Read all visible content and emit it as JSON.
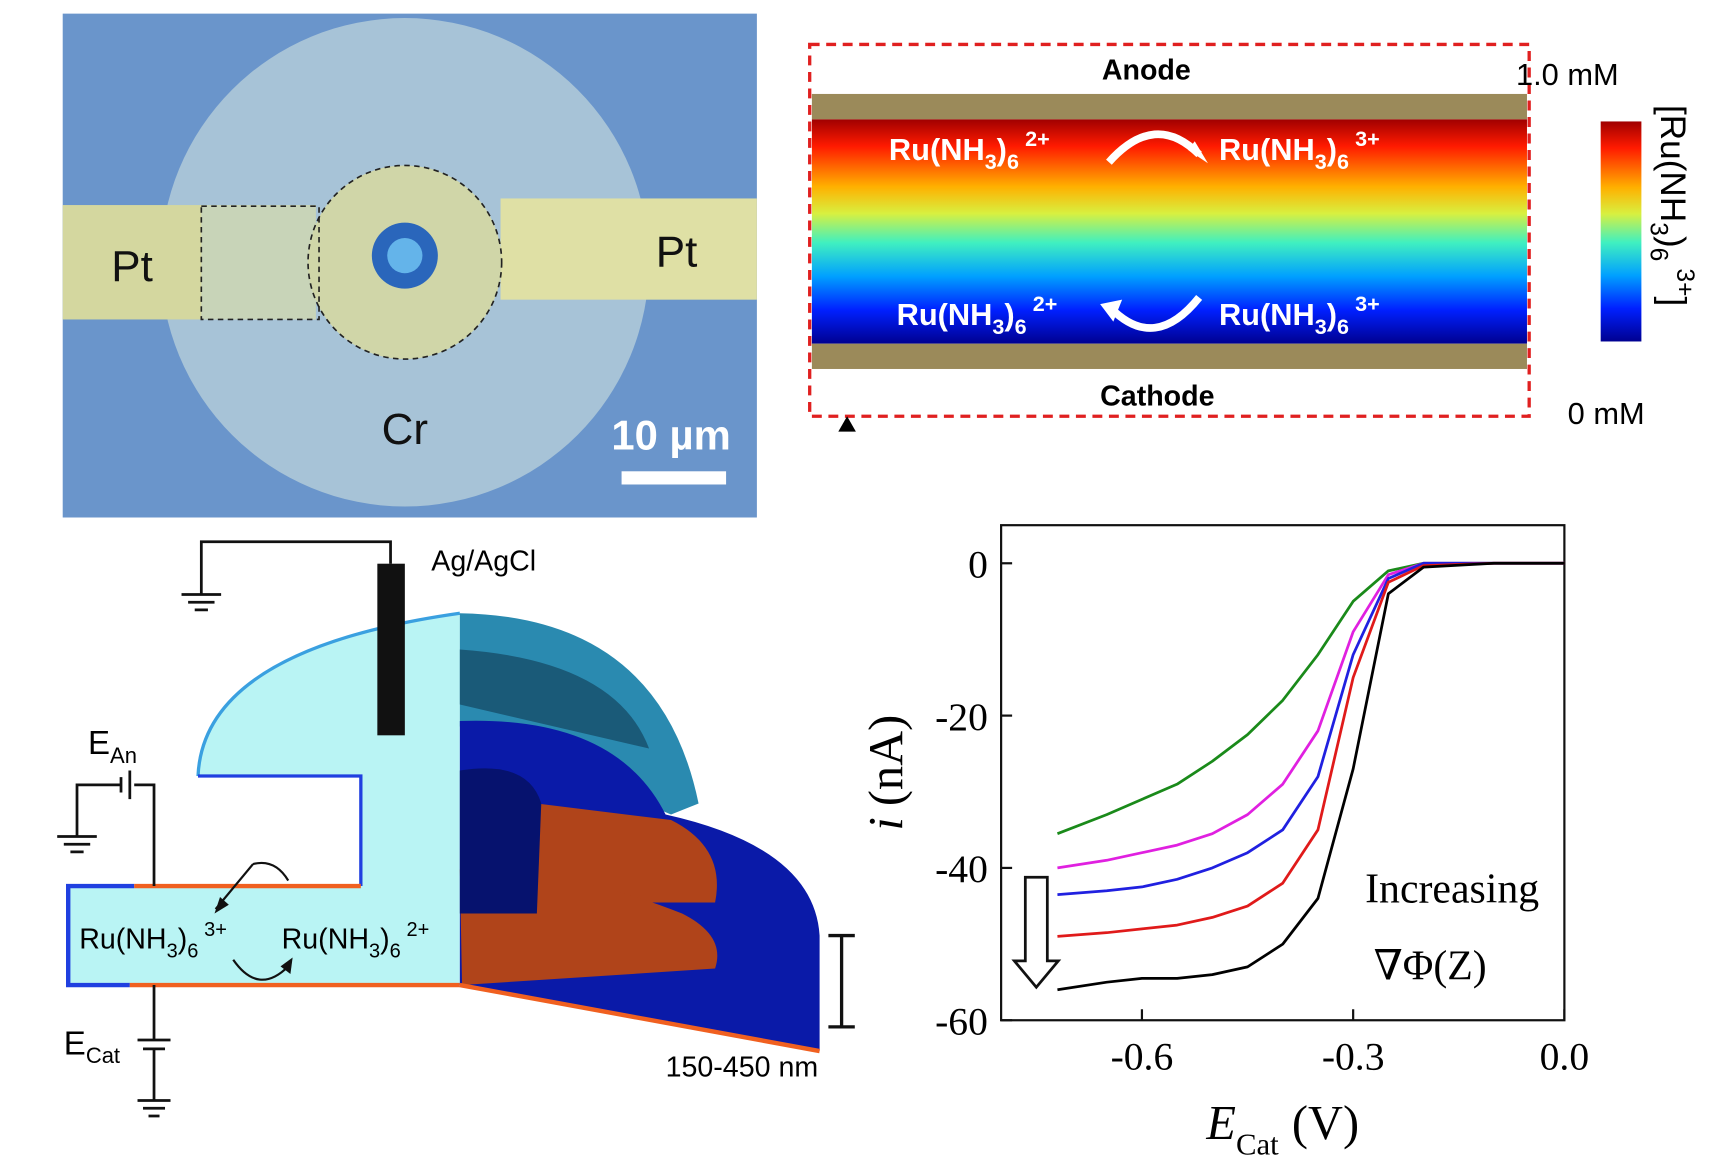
{
  "micrograph": {
    "labels": [
      "Pt",
      "Pt",
      "Cr"
    ],
    "scale_bar": "10 µm"
  },
  "concentration_map": {
    "anode": "Anode",
    "cathode": "Cathode",
    "top_left": {
      "a": "Ru(NH",
      "b": "3",
      "c": ")",
      "d": "6",
      "e": "2+"
    },
    "top_right": {
      "a": "Ru(NH",
      "b": "3",
      "c": ")",
      "d": "6",
      "e": "3+"
    },
    "bottom_left": {
      "a": "Ru(NH",
      "b": "3",
      "c": ")",
      "d": "6",
      "e": "2+"
    },
    "bottom_right": {
      "a": "Ru(NH",
      "b": "3",
      "c": ")",
      "d": "6",
      "e": "3+"
    },
    "colorbar_max": "1.0 mM",
    "colorbar_min": "0 mM",
    "colorbar_title": {
      "open": "[",
      "a": "Ru(NH",
      "b": "3",
      "c": ")",
      "d": "6",
      "e": "3+",
      "close": "]"
    }
  },
  "schematic": {
    "reference": "Ag/AgCl",
    "anode_potential": {
      "symbol": "E",
      "sub": "An"
    },
    "cathode_potential": {
      "symbol": "E",
      "sub": "Cat"
    },
    "oxidized": {
      "a": "Ru(NH",
      "b": "3",
      "c": ")",
      "d": "6",
      "e": "3+"
    },
    "reduced": {
      "a": "Ru(NH",
      "b": "3",
      "c": ")",
      "d": "6",
      "e": "2+"
    },
    "gap": "150-450 nm"
  },
  "chart_data": {
    "type": "line",
    "xlabel": {
      "symbol": "E",
      "sub": "Cat",
      "unit": "(V)"
    },
    "ylabel": {
      "symbol": "i",
      "unit": "(nA)"
    },
    "x": [
      -0.72,
      -0.65,
      -0.6,
      -0.55,
      -0.5,
      -0.45,
      -0.4,
      -0.35,
      -0.3,
      -0.25,
      -0.2,
      -0.1,
      0
    ],
    "series": [
      {
        "color": "#1a8a1a",
        "values": [
          -35.5,
          -33,
          -31,
          -29,
          -26,
          -22.5,
          -18,
          -12,
          -5,
          -1,
          0,
          0,
          0
        ]
      },
      {
        "color": "#e020e0",
        "values": [
          -40,
          -39,
          -38,
          -37,
          -35.5,
          -33,
          -29,
          -22,
          -9,
          -1.5,
          0,
          0,
          0
        ]
      },
      {
        "color": "#2020e0",
        "values": [
          -43.5,
          -43,
          -42.5,
          -41.5,
          -40,
          -38,
          -35,
          -28,
          -12,
          -2,
          0,
          0,
          0
        ]
      },
      {
        "color": "#e01a1a",
        "values": [
          -49,
          -48.5,
          -48,
          -47.5,
          -46.5,
          -45,
          -42,
          -35,
          -15,
          -2.5,
          -0.3,
          0,
          0
        ]
      },
      {
        "color": "#000000",
        "values": [
          -56,
          -55,
          -54.5,
          -54.5,
          -54,
          -53,
          -50,
          -44,
          -27,
          -4,
          -0.5,
          0,
          0
        ]
      }
    ],
    "xlim": [
      -0.8,
      0
    ],
    "ylim": [
      -60,
      5
    ],
    "xticks": [
      -0.6,
      -0.3,
      {
        "value": 0,
        "label": "0.0"
      }
    ],
    "yticks": [
      0,
      -20,
      -40,
      -60
    ],
    "annotations": [
      "Increasing",
      "∇Φ(Z)"
    ]
  }
}
